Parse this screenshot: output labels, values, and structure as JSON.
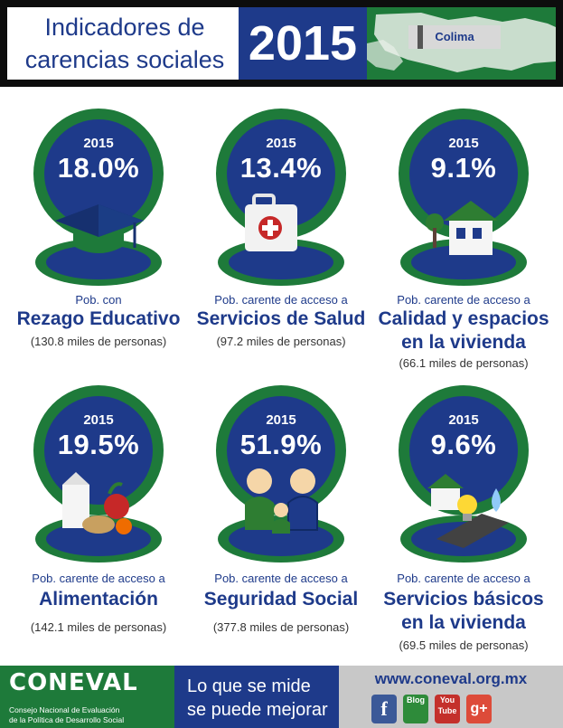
{
  "header": {
    "title_line1": "Indicadores de",
    "title_line2": "carencias sociales",
    "year": "2015",
    "state": "Colima"
  },
  "colors": {
    "navy": "#1e3a8a",
    "green": "#1e7a3a",
    "text_blue": "#1e3a8a"
  },
  "indicators": [
    {
      "year": "2015",
      "percent": "18.0%",
      "prefix": "Pob. con",
      "name_line1": "Rezago Educativo",
      "name_line2": "",
      "count": "(130.8  miles de personas)",
      "icon": "graduation-cap-icon"
    },
    {
      "year": "2015",
      "percent": "13.4%",
      "prefix": "Pob. carente de acceso a",
      "name_line1": "Servicios de Salud",
      "name_line2": "",
      "count": "(97.2  miles de personas)",
      "icon": "first-aid-kit-icon"
    },
    {
      "year": "2015",
      "percent": "9.1%",
      "prefix": "Pob. carente de acceso a",
      "name_line1": "Calidad y espacios",
      "name_line2": "en la vivienda",
      "count": "(66.1  miles de personas)",
      "icon": "house-icon"
    },
    {
      "year": "2015",
      "percent": "19.5%",
      "prefix": "Pob. carente de acceso a",
      "name_line1": "Alimentación",
      "name_line2": "",
      "count": "(142.1  miles de personas)",
      "icon": "food-icon"
    },
    {
      "year": "2015",
      "percent": "51.9%",
      "prefix": "Pob. carente de acceso a",
      "name_line1": "Seguridad Social",
      "name_line2": "",
      "count": "(377.8  miles de personas)",
      "icon": "family-icon"
    },
    {
      "year": "2015",
      "percent": "9.6%",
      "prefix": "Pob. carente de acceso a",
      "name_line1": "Servicios básicos",
      "name_line2": "en la vivienda",
      "count": "(69.5  miles de personas)",
      "icon": "utilities-icon"
    }
  ],
  "footer": {
    "logo": "CONEVAL",
    "org_line1": "Consejo Nacional de Evaluación",
    "org_line2": "de la Política de Desarrollo Social",
    "slogan_line1": "Lo que se mide",
    "slogan_line2": "se puede mejorar",
    "url": "www.coneval.org.mx",
    "social": {
      "facebook": "f",
      "blog": "Blog",
      "youtube": "You Tube",
      "googleplus": "g+"
    }
  }
}
